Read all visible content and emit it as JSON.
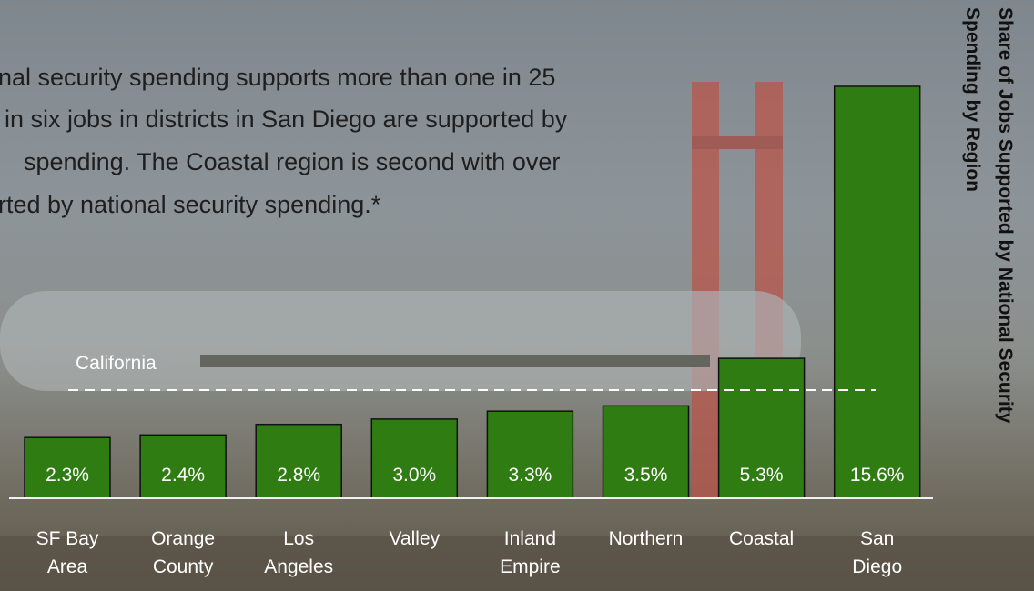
{
  "chart_data": {
    "type": "bar",
    "title": "Share of Jobs Supported by National Security Spending by Region",
    "note_lines": [
      "nal security spending supports more than one in 25",
      "in six jobs in districts in San Diego are supported by",
      "spending. The Coastal region is second with over",
      "rted by national security spending.*"
    ],
    "categories": [
      "SF Bay Area",
      "Orange County",
      "Los Angeles",
      "Valley",
      "Inland Empire",
      "Northern",
      "Coastal",
      "San Diego"
    ],
    "values": [
      2.3,
      2.4,
      2.8,
      3.0,
      3.3,
      3.5,
      5.3,
      15.6
    ],
    "value_labels": [
      "2.3%",
      "2.4%",
      "2.8%",
      "3.0%",
      "3.3%",
      "3.5%",
      "5.3%",
      "15.6%"
    ],
    "color": "#2f7d12",
    "reference_line": {
      "label": "California",
      "value": 4.1
    }
  }
}
